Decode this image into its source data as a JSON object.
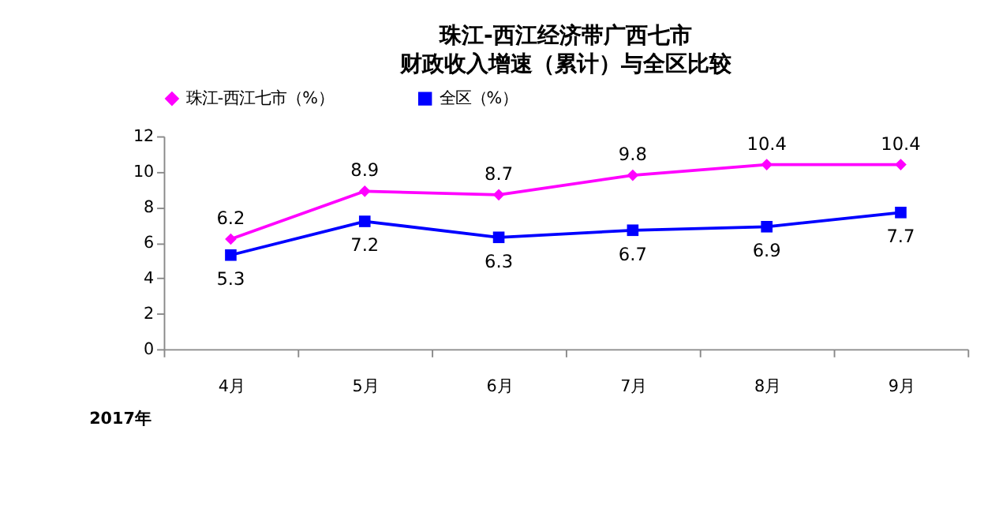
{
  "chart_data": {
    "type": "line",
    "title": "珠江-西江经济带广西七市",
    "subtitle": "财政收入增速（累计）与全区比较",
    "categories": [
      "4月",
      "5月",
      "6月",
      "7月",
      "8月",
      "9月"
    ],
    "series": [
      {
        "name": "珠江-西江七市（%）",
        "color": "#ff00ff",
        "marker": "diamond",
        "values": [
          6.2,
          8.9,
          8.7,
          9.8,
          10.4,
          10.4
        ]
      },
      {
        "name": "全区（%）",
        "color": "#0000ff",
        "marker": "square",
        "values": [
          5.3,
          7.2,
          6.3,
          6.7,
          6.9,
          7.7
        ]
      }
    ],
    "ylim": [
      0,
      12
    ],
    "yticks": [
      0,
      2,
      4,
      6,
      8,
      10,
      12
    ],
    "grid": false,
    "legend": "top",
    "data_labels": true,
    "line_style": "solid",
    "annotations": [
      "2017年"
    ]
  }
}
